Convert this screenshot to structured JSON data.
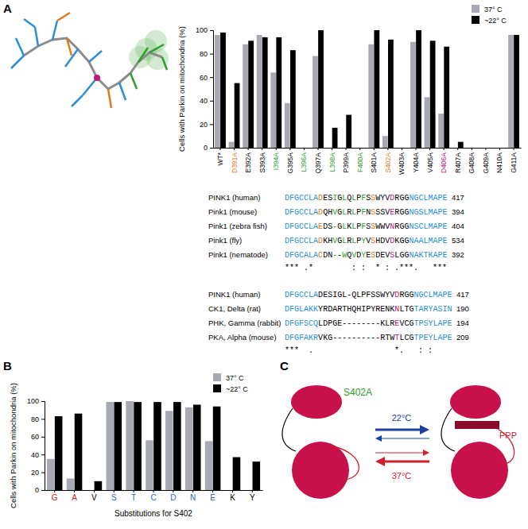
{
  "panels": [
    "A",
    "B",
    "C"
  ],
  "chart_data": [
    {
      "type": "bar",
      "ylabel": "Cells with Parkin on mitochondria (%)",
      "categories": [
        "WT*",
        "D391A",
        "E392A",
        "S393A",
        "I394A",
        "G395A",
        "L396A",
        "Q397A",
        "L398A",
        "P399A",
        "F400A",
        "S401A",
        "S402A",
        "W403A",
        "Y404A",
        "V405A",
        "D406A",
        "R407A",
        "G408A",
        "G409A",
        "N410A",
        "G411A"
      ],
      "series": [
        {
          "name": "37° C",
          "color": "#a7aab2",
          "values": [
            96,
            5,
            88,
            96,
            64,
            38,
            0,
            78,
            0,
            0,
            0,
            88,
            10,
            0,
            90,
            43,
            29,
            0,
            0,
            0,
            0,
            96
          ]
        },
        {
          "name": "~22° C",
          "color": "#000000",
          "values": [
            98,
            55,
            91,
            94,
            94,
            83,
            0,
            100,
            17,
            28,
            0,
            100,
            92,
            0,
            100,
            91,
            86,
            5,
            0,
            0,
            0,
            96
          ]
        }
      ],
      "ylim": [
        0,
        100
      ],
      "yticks": [
        0,
        20,
        40,
        60,
        80,
        100
      ],
      "legend": "top-right"
    },
    {
      "type": "bar",
      "ylabel": "Cells with Parkin on mitochondria (%)",
      "xlabel": "Substitutions for S402",
      "categories": [
        "G",
        "A",
        "V",
        "S",
        "T",
        "C",
        "D",
        "N",
        "E",
        "K",
        "Y"
      ],
      "series": [
        {
          "name": "37° C",
          "color": "#a7aab2",
          "values": [
            35,
            13,
            0,
            99,
            100,
            56,
            89,
            93,
            55,
            0,
            0
          ]
        },
        {
          "name": "~22° C",
          "color": "#000000",
          "values": [
            83,
            86,
            10,
            99,
            99,
            99,
            99,
            96,
            94,
            37,
            32
          ]
        }
      ],
      "ylim": [
        0,
        100
      ],
      "yticks": [
        0,
        20,
        40,
        60,
        80,
        100
      ],
      "legend": "top-right"
    }
  ],
  "alignment": {
    "blocks": [
      {
        "rows": [
          {
            "name": "PINK1 (human)",
            "sequence": "DFGCCLADESIGLQLPFSSWYVDRGGNGCLMAPE",
            "end": 417
          },
          {
            "name": "Pink1 (mouse)",
            "sequence": "DFGCCLADQHVGLRLPFNSSSVERGGNGSLMAPE",
            "end": 394
          },
          {
            "name": "Pink1 (zebra fish)",
            "sequence": "DFGCCLAEDS-GLKLPFSSWWVNRGGNSCLMAPE",
            "end": 404
          },
          {
            "name": "Pink1 (fly)",
            "sequence": "DFGCCLADKHVGLRLPYVSHDVDKGGNAALMAPE",
            "end": 534
          },
          {
            "name": "Pink1 (nematode)",
            "sequence": "DFGCALACDN--WQVDYESDEVSLGGNAKTKAPE",
            "end": 392
          }
        ],
        "conservation": "*** .*        : :  * : .***.   ***"
      },
      {
        "rows": [
          {
            "name": "PINK1 (human)",
            "sequence": "DFGCCLADESIGL-QLPFSSWYVDRGGNGCLMAPE",
            "end": 417
          },
          {
            "name": "CK1, Delta (rat)",
            "sequence": "DFGLAKKYRDARTHQHIPYRENKNLTGTARYASIN",
            "end": 190
          },
          {
            "name": "PHK, Gamma (rabbit)",
            "sequence": "DFGFSCQLDPGE--------KLREVCGTPSYLAPE",
            "end": 194
          },
          {
            "name": "PKA, Alpha (mouse)",
            "sequence": "DFGFAKRVKG----------RTWTLCGTPEYLAPE",
            "end": 209
          }
        ],
        "conservation": "***  .                 *.   : :"
      }
    ]
  },
  "diagram": {
    "left_label": "S402A",
    "right_label": "PPP",
    "forward_label": "22°C",
    "reverse_label": "37°C"
  }
}
